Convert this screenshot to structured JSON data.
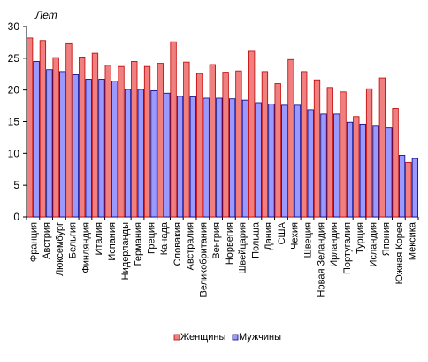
{
  "chart_data": {
    "type": "bar",
    "unit_label": "Лет",
    "ylim": [
      0,
      30
    ],
    "y_ticks": [
      0,
      5,
      10,
      15,
      20,
      25,
      30
    ],
    "grid": false,
    "legend_position": "bottom",
    "categories": [
      "Франция",
      "Австрия",
      "Люксембург",
      "Бельгия",
      "Финляндия",
      "Италия",
      "Испания",
      "Нидерланды",
      "Германия",
      "Греция",
      "Канада",
      "Словакия",
      "Австралия",
      "Великобритания",
      "Венгрия",
      "Норвегия",
      "Швейцария",
      "Польша",
      "Дания",
      "США",
      "Чехия",
      "Швеция",
      "Новая Зеландия",
      "Ирландия",
      "Португалия",
      "Турция",
      "Исландия",
      "Япония",
      "Южная Корея",
      "Мексика"
    ],
    "series": [
      {
        "name": "Женщины",
        "color": "#f08080",
        "values": [
          28.2,
          27.8,
          25.1,
          27.3,
          25.2,
          25.8,
          23.9,
          23.7,
          24.5,
          23.7,
          24.2,
          27.6,
          24.4,
          22.6,
          24.0,
          22.8,
          23.0,
          26.1,
          22.9,
          21.0,
          24.8,
          22.9,
          21.6,
          20.4,
          19.7,
          15.8,
          20.2,
          21.9,
          17.1,
          8.6
        ],
        "border": "#c00000"
      },
      {
        "name": "Мужчины",
        "color": "#9999ff",
        "values": [
          24.5,
          23.2,
          22.9,
          22.4,
          21.7,
          21.7,
          21.4,
          20.1,
          20.1,
          19.9,
          19.5,
          19.0,
          18.9,
          18.7,
          18.7,
          18.6,
          18.4,
          18.0,
          17.8,
          17.6,
          17.6,
          16.9,
          16.2,
          16.2,
          14.9,
          14.6,
          14.4,
          14.0,
          9.7,
          9.2
        ],
        "border": "#000080"
      }
    ]
  }
}
